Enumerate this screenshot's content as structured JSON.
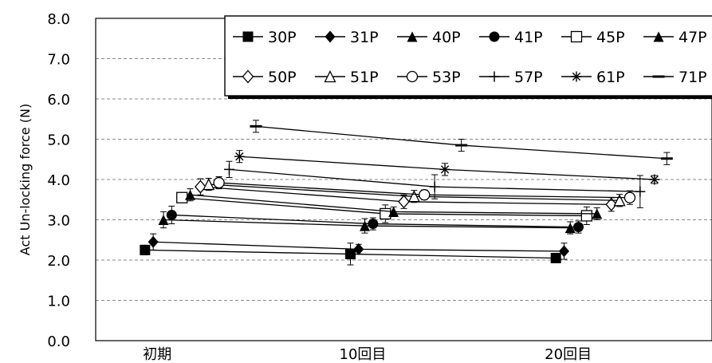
{
  "chart_data": {
    "type": "line",
    "ylabel": "Act Un-locking force (N)",
    "categories": [
      "初期",
      "10回目",
      "20回目"
    ],
    "yticks": [
      "0.0",
      "1.0",
      "2.0",
      "3.0",
      "4.0",
      "5.0",
      "6.0",
      "7.0",
      "8.0"
    ],
    "ylim": [
      0,
      8
    ],
    "grid": "horizontal-dashed",
    "legend_position": "top-right",
    "series": [
      {
        "name": "30P",
        "marker": "filled-square",
        "x": [
          0.24,
          1.24,
          2.24
        ],
        "y": [
          2.25,
          2.15,
          2.05
        ],
        "err": [
          0.12,
          0.27,
          0.08
        ]
      },
      {
        "name": "31P",
        "marker": "filled-diamond",
        "x": [
          0.28,
          1.28,
          2.28
        ],
        "y": [
          2.45,
          2.27,
          2.22
        ],
        "err": [
          0.2,
          0.12,
          0.2
        ]
      },
      {
        "name": "40P",
        "marker": "filled-triangle",
        "x": [
          0.33,
          1.31,
          2.31
        ],
        "y": [
          3.0,
          2.85,
          2.8
        ],
        "err": [
          0.2,
          0.18,
          0.15
        ]
      },
      {
        "name": "41P",
        "marker": "filled-circle",
        "x": [
          0.37,
          1.35,
          2.35
        ],
        "y": [
          3.12,
          2.9,
          2.82
        ],
        "err": [
          0.22,
          0.15,
          0.15
        ]
      },
      {
        "name": "45P",
        "marker": "open-square",
        "x": [
          0.42,
          1.41,
          2.39
        ],
        "y": [
          3.55,
          3.15,
          3.1
        ],
        "err": [
          0.1,
          0.22,
          0.22
        ]
      },
      {
        "name": "47P",
        "marker": "filled-triangle",
        "x": [
          0.46,
          1.45,
          2.44
        ],
        "y": [
          3.62,
          3.2,
          3.15
        ],
        "err": [
          0.15,
          0.12,
          0.15
        ]
      },
      {
        "name": "50P",
        "marker": "open-diamond",
        "x": [
          0.51,
          1.5,
          2.51
        ],
        "y": [
          3.82,
          3.45,
          3.38
        ],
        "err": [
          0.2,
          0.17,
          0.17
        ]
      },
      {
        "name": "51P",
        "marker": "open-triangle",
        "x": [
          0.55,
          1.55,
          2.55
        ],
        "y": [
          3.88,
          3.58,
          3.48
        ],
        "err": [
          0.15,
          0.15,
          0.15
        ]
      },
      {
        "name": "53P",
        "marker": "open-circle",
        "x": [
          0.6,
          1.6,
          2.6
        ],
        "y": [
          3.92,
          3.62,
          3.55
        ],
        "err": [
          0.15,
          0.12,
          0.17
        ]
      },
      {
        "name": "57P",
        "marker": "plus",
        "x": [
          0.65,
          1.65,
          2.65
        ],
        "y": [
          4.25,
          3.82,
          3.7
        ],
        "err": [
          0.2,
          0.3,
          0.4
        ]
      },
      {
        "name": "61P",
        "marker": "asterisk",
        "x": [
          0.7,
          1.7,
          2.72
        ],
        "y": [
          4.57,
          4.25,
          4.0
        ],
        "err": [
          0.15,
          0.15,
          0.1
        ]
      },
      {
        "name": "71P",
        "marker": "dash",
        "x": [
          0.78,
          1.78,
          2.78
        ],
        "y": [
          5.32,
          4.85,
          4.52
        ],
        "err": [
          0.15,
          0.15,
          0.15
        ]
      }
    ]
  }
}
